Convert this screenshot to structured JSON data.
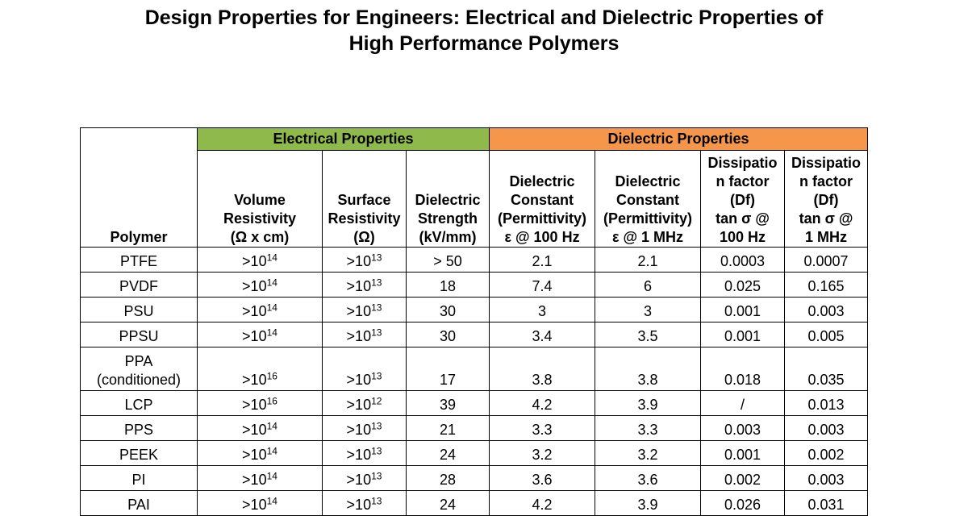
{
  "title": {
    "line1": "Design Properties for Engineers: Electrical and Dielectric Properties of",
    "line2": "High Performance Polymers"
  },
  "groups": {
    "electrical": "Electrical Properties",
    "dielectric": "Dielectric Properties"
  },
  "colors": {
    "electrical_header": "#8fb94a",
    "dielectric_header": "#f5964a"
  },
  "headers": {
    "polymer": "Polymer",
    "volume_resistivity": [
      "Volume",
      "Resistivity",
      "(Ω x cm)"
    ],
    "surface_resistivity": [
      "Surface",
      "Resistivity",
      "(Ω)"
    ],
    "dielectric_strength": [
      "Dielectric",
      "Strength",
      "(kV/mm)"
    ],
    "dc_100hz": [
      "Dielectric",
      "Constant",
      "(Permittivity)",
      "ε @ 100 Hz"
    ],
    "dc_1mhz": [
      "Dielectric",
      "Constant",
      "(Permittivity)",
      "ε @ 1 MHz"
    ],
    "df_100hz": [
      "Dissipatio",
      "n factor",
      "(Df)",
      "tan σ @",
      "100 Hz"
    ],
    "df_1mhz": [
      "Dissipatio",
      "n factor",
      "(Df)",
      "tan σ @",
      "1 MHz"
    ]
  },
  "rows": [
    {
      "polymer": [
        "PTFE"
      ],
      "vr_base": ">10",
      "vr_exp": "14",
      "sr_base": ">10",
      "sr_exp": "13",
      "ds": "> 50",
      "dc100": "2.1",
      "dc1m": "2.1",
      "df100": "0.0003",
      "df1m": "0.0007"
    },
    {
      "polymer": [
        "PVDF"
      ],
      "vr_base": ">10",
      "vr_exp": "14",
      "sr_base": ">10",
      "sr_exp": "13",
      "ds": "18",
      "dc100": "7.4",
      "dc1m": "6",
      "df100": "0.025",
      "df1m": "0.165"
    },
    {
      "polymer": [
        "PSU"
      ],
      "vr_base": ">10",
      "vr_exp": "14",
      "sr_base": ">10",
      "sr_exp": "13",
      "ds": "30",
      "dc100": "3",
      "dc1m": "3",
      "df100": "0.001",
      "df1m": "0.003"
    },
    {
      "polymer": [
        "PPSU"
      ],
      "vr_base": ">10",
      "vr_exp": "14",
      "sr_base": ">10",
      "sr_exp": "13",
      "ds": "30",
      "dc100": "3.4",
      "dc1m": "3.5",
      "df100": "0.001",
      "df1m": "0.005"
    },
    {
      "polymer": [
        "PPA",
        "(conditioned)"
      ],
      "vr_base": ">10",
      "vr_exp": "16",
      "sr_base": ">10",
      "sr_exp": "13",
      "ds": "17",
      "dc100": "3.8",
      "dc1m": "3.8",
      "df100": "0.018",
      "df1m": "0.035"
    },
    {
      "polymer": [
        "LCP"
      ],
      "vr_base": ">10",
      "vr_exp": "16",
      "sr_base": ">10",
      "sr_exp": "12",
      "ds": "39",
      "dc100": "4.2",
      "dc1m": "3.9",
      "df100": "/",
      "df1m": "0.013"
    },
    {
      "polymer": [
        "PPS"
      ],
      "vr_base": ">10",
      "vr_exp": "14",
      "sr_base": ">10",
      "sr_exp": "13",
      "ds": "21",
      "dc100": "3.3",
      "dc1m": "3.3",
      "df100": "0.003",
      "df1m": "0.003"
    },
    {
      "polymer": [
        "PEEK"
      ],
      "vr_base": ">10",
      "vr_exp": "14",
      "sr_base": ">10",
      "sr_exp": "13",
      "ds": "24",
      "dc100": "3.2",
      "dc1m": "3.2",
      "df100": "0.001",
      "df1m": "0.002"
    },
    {
      "polymer": [
        "PI"
      ],
      "vr_base": ">10",
      "vr_exp": "14",
      "sr_base": ">10",
      "sr_exp": "13",
      "ds": "28",
      "dc100": "3.6",
      "dc1m": "3.6",
      "df100": "0.002",
      "df1m": "0.003"
    },
    {
      "polymer": [
        "PAI"
      ],
      "vr_base": ">10",
      "vr_exp": "14",
      "sr_base": ">10",
      "sr_exp": "13",
      "ds": "24",
      "dc100": "4.2",
      "dc1m": "3.9",
      "df100": "0.026",
      "df1m": "0.031"
    }
  ]
}
